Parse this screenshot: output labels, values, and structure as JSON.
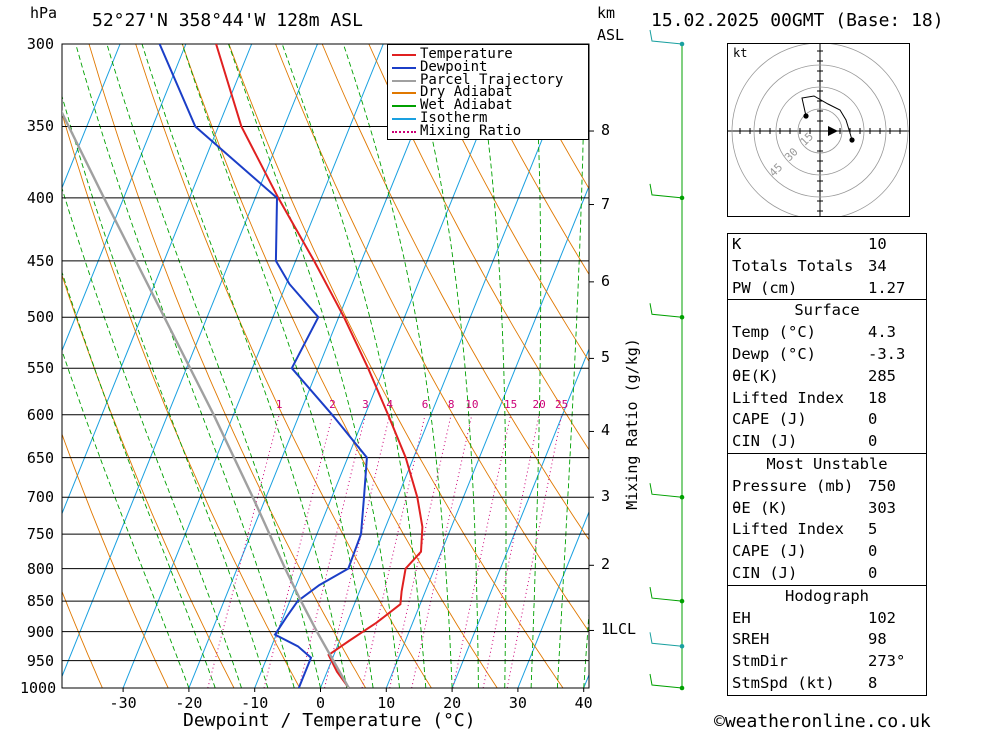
{
  "header": {
    "location": "52°27'N  358°44'W  128m  ASL",
    "datetime": "15.02.2025  00GMT  (Base: 18)",
    "hpa_unit": "hPa",
    "km_unit": "km",
    "asl_unit": "ASL"
  },
  "chart_data": {
    "type": "skew-t",
    "xlabel": "Dewpoint / Temperature (°C)",
    "ylabel_right": "Mixing Ratio (g/kg)",
    "pressure_levels": [
      300,
      350,
      400,
      450,
      500,
      550,
      600,
      650,
      700,
      750,
      800,
      850,
      900,
      950,
      1000
    ],
    "temperature_ticks": [
      -30,
      -20,
      -10,
      0,
      10,
      20,
      30,
      40
    ],
    "height_km_ticks": [
      {
        "label": "8",
        "p": 353
      },
      {
        "label": "7",
        "p": 405
      },
      {
        "label": "6",
        "p": 468
      },
      {
        "label": "5",
        "p": 540
      },
      {
        "label": "4",
        "p": 619
      },
      {
        "label": "3",
        "p": 700
      },
      {
        "label": "2",
        "p": 795
      },
      {
        "label": "1",
        "p": 898
      }
    ],
    "lcl_label": "LCL",
    "mixing_ratio_labels": [
      "1",
      "2",
      "3",
      "4",
      "6",
      "8",
      "10",
      "15",
      "20",
      "25"
    ],
    "series": [
      {
        "name": "Temperature",
        "color": "#e02020",
        "points": [
          [
            1000,
            4.3
          ],
          [
            970,
            1.5
          ],
          [
            940,
            -0.8
          ],
          [
            915,
            1.5
          ],
          [
            885,
            4.5
          ],
          [
            855,
            7.0
          ],
          [
            835,
            6.4
          ],
          [
            800,
            5.6
          ],
          [
            775,
            6.9
          ],
          [
            740,
            5.6
          ],
          [
            700,
            3.0
          ],
          [
            650,
            -1.2
          ],
          [
            600,
            -6.5
          ],
          [
            550,
            -12.4
          ],
          [
            500,
            -19.2
          ],
          [
            450,
            -27.2
          ],
          [
            400,
            -36.5
          ],
          [
            350,
            -46.5
          ],
          [
            300,
            -55.4
          ]
        ]
      },
      {
        "name": "Dewpoint",
        "color": "#1b3ec7",
        "points": [
          [
            1000,
            -3.3
          ],
          [
            945,
            -3.3
          ],
          [
            925,
            -6.0
          ],
          [
            905,
            -10.2
          ],
          [
            875,
            -9.5
          ],
          [
            850,
            -8.8
          ],
          [
            825,
            -6.5
          ],
          [
            800,
            -3.1
          ],
          [
            750,
            -3.3
          ],
          [
            700,
            -5.1
          ],
          [
            650,
            -7.1
          ],
          [
            600,
            -15.0
          ],
          [
            550,
            -24.0
          ],
          [
            500,
            -23.1
          ],
          [
            470,
            -29.5
          ],
          [
            450,
            -33.0
          ],
          [
            400,
            -36.7
          ],
          [
            350,
            -53.5
          ],
          [
            300,
            -64.0
          ]
        ]
      },
      {
        "name": "Parcel Trajectory",
        "color": "#a0a0a0",
        "points": [
          [
            1000,
            4.3
          ],
          [
            900,
            -4.0
          ],
          [
            850,
            -8.3
          ],
          [
            800,
            -12.7
          ],
          [
            700,
            -22.0
          ],
          [
            600,
            -33.0
          ],
          [
            500,
            -46.5
          ],
          [
            400,
            -63.0
          ],
          [
            300,
            -84.0
          ]
        ]
      }
    ],
    "legend": [
      {
        "name": "Temperature",
        "color": "#e02020",
        "style": "solid"
      },
      {
        "name": "Dewpoint",
        "color": "#1b3ec7",
        "style": "solid"
      },
      {
        "name": "Parcel Trajectory",
        "color": "#a0a0a0",
        "style": "solid"
      },
      {
        "name": "Dry Adiabat",
        "color": "#e07800",
        "style": "solid"
      },
      {
        "name": "Wet Adiabat",
        "color": "#00a000",
        "style": "solid"
      },
      {
        "name": "Isotherm",
        "color": "#1aa0e0",
        "style": "solid"
      },
      {
        "name": "Mixing Ratio",
        "color": "#cc0077",
        "style": "dotted"
      }
    ],
    "legend_position": "top-right"
  },
  "hodograph": {
    "unit": "kt",
    "ring_labels": [
      "15",
      "30",
      "45"
    ]
  },
  "indices": {
    "general": [
      {
        "k": "K",
        "v": "10"
      },
      {
        "k": "Totals Totals",
        "v": "34"
      },
      {
        "k": "PW (cm)",
        "v": "1.27"
      }
    ],
    "surface": {
      "title": "Surface",
      "rows": [
        {
          "k": "Temp (°C)",
          "v": "4.3"
        },
        {
          "k": "Dewp (°C)",
          "v": "-3.3"
        },
        {
          "k": "θE(K)",
          "v": "285"
        },
        {
          "k": "Lifted Index",
          "v": "18"
        },
        {
          "k": "CAPE (J)",
          "v": "0"
        },
        {
          "k": "CIN (J)",
          "v": "0"
        }
      ]
    },
    "most_unstable": {
      "title": "Most Unstable",
      "rows": [
        {
          "k": "Pressure (mb)",
          "v": "750"
        },
        {
          "k": "θE (K)",
          "v": "303"
        },
        {
          "k": "Lifted Index",
          "v": "5"
        },
        {
          "k": "CAPE (J)",
          "v": "0"
        },
        {
          "k": "CIN (J)",
          "v": "0"
        }
      ]
    },
    "hodograph_box": {
      "title": "Hodograph",
      "rows": [
        {
          "k": "EH",
          "v": "102"
        },
        {
          "k": "SREH",
          "v": "98"
        },
        {
          "k": "StmDir",
          "v": "273°"
        },
        {
          "k": "StmSpd (kt)",
          "v": "8"
        }
      ]
    }
  },
  "footer": {
    "copyright": "©weatheronline.co.uk"
  }
}
